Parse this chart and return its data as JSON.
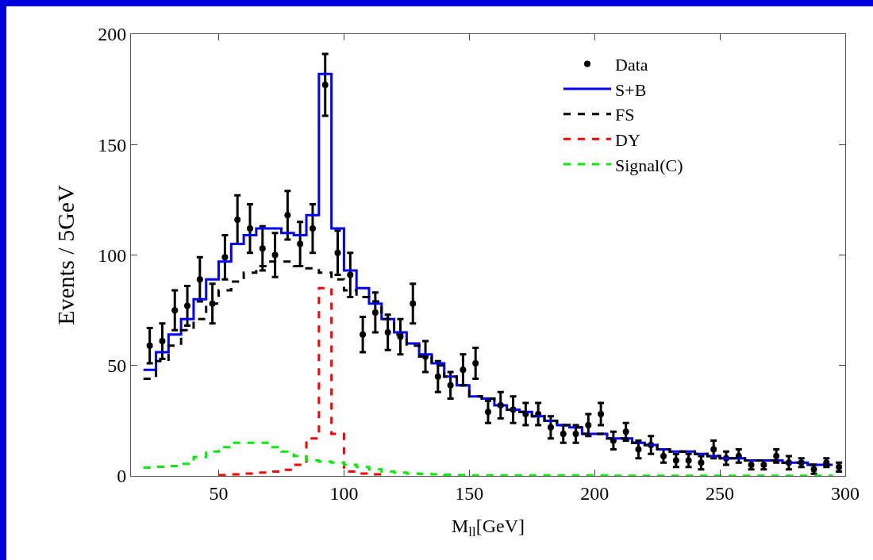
{
  "chart_data": {
    "type": "step",
    "xlabel": "M$_{ll}$[GeV]",
    "ylabel": "Events / 5GeV",
    "xlim": [
      15,
      300
    ],
    "xticks": [
      50,
      100,
      150,
      200,
      250,
      300
    ],
    "ylim": [
      0,
      200
    ],
    "yticks": [
      0,
      50,
      100,
      150,
      200
    ],
    "grid": false,
    "legend": "top right",
    "series": [
      {
        "name": "Data",
        "type": "scatter",
        "color": "#000000",
        "marker": "circle",
        "x": [
          22.5,
          27.5,
          32.5,
          37.5,
          42.5,
          47.5,
          52.5,
          57.5,
          62.5,
          67.5,
          72.5,
          77.5,
          82.5,
          87.5,
          92.5,
          97.5,
          102.5,
          107.5,
          112.5,
          117.5,
          122.5,
          127.5,
          132.5,
          137.5,
          142.5,
          147.5,
          152.5,
          157.5,
          162.5,
          167.5,
          172.5,
          177.5,
          182.5,
          187.5,
          192.5,
          197.5,
          202.5,
          207.5,
          212.5,
          217.5,
          222.5,
          227.5,
          232.5,
          237.5,
          242.5,
          247.5,
          252.5,
          257.5,
          262.5,
          267.5,
          272.5,
          277.5,
          282.5,
          287.5,
          292.5,
          297.5
        ],
        "values": [
          59,
          61,
          75,
          77,
          89,
          78,
          99,
          116,
          112,
          103,
          100,
          118,
          105,
          112,
          177,
          101,
          91,
          64,
          74,
          65,
          63,
          78,
          54,
          45,
          41,
          48,
          51,
          29,
          32,
          30,
          28,
          28,
          22,
          19,
          19,
          23,
          28,
          16,
          20,
          12,
          14,
          9,
          7,
          7,
          6,
          12,
          8,
          9,
          5,
          5,
          9,
          6,
          6,
          3,
          6,
          4
        ],
        "errors": [
          8,
          8,
          9,
          9,
          10,
          9,
          10,
          11,
          11,
          10,
          10,
          11,
          10,
          11,
          14,
          10,
          10,
          8,
          9,
          8,
          8,
          9,
          7,
          7,
          6,
          7,
          7,
          5,
          6,
          6,
          5,
          5,
          5,
          4,
          4,
          5,
          5,
          4,
          4,
          4,
          4,
          3,
          3,
          3,
          3,
          4,
          3,
          3,
          2,
          2,
          3,
          3,
          2,
          2,
          2,
          2
        ]
      },
      {
        "name": "S+B",
        "color": "#0000ff",
        "line_style": "solid",
        "x": [
          20,
          25,
          30,
          35,
          40,
          45,
          50,
          55,
          60,
          65,
          70,
          75,
          80,
          85,
          90,
          95,
          100,
          105,
          110,
          115,
          120,
          125,
          130,
          135,
          140,
          145,
          150,
          155,
          160,
          165,
          170,
          175,
          180,
          185,
          190,
          195,
          200,
          205,
          210,
          215,
          220,
          225,
          230,
          235,
          240,
          245,
          250,
          255,
          260,
          265,
          270,
          275,
          280,
          285,
          290,
          295
        ],
        "values": [
          48,
          56,
          64,
          71,
          80,
          89,
          97,
          105,
          109,
          112,
          112,
          110,
          109,
          118,
          182,
          112,
          93,
          85,
          78,
          71,
          65,
          60,
          55,
          51,
          45,
          41,
          36,
          35,
          32,
          30,
          29,
          27,
          25,
          23,
          22,
          19,
          19,
          17,
          17,
          15,
          14,
          12,
          11,
          11,
          10,
          9,
          8,
          8,
          7,
          7,
          7,
          6,
          6,
          5,
          5,
          5
        ]
      },
      {
        "name": "FS",
        "color": "#000000",
        "line_style": "dashed",
        "x": [
          20,
          25,
          30,
          35,
          40,
          45,
          50,
          55,
          60,
          65,
          70,
          75,
          80,
          85,
          90,
          95,
          100,
          105,
          110,
          115,
          120,
          125,
          130,
          135,
          140,
          145,
          150,
          155,
          160,
          165,
          170,
          175,
          180,
          185,
          190,
          195,
          200,
          205,
          210,
          215,
          220,
          225,
          230,
          235,
          240,
          245,
          250,
          255,
          260,
          265,
          270,
          275,
          280,
          285,
          290,
          295
        ],
        "values": [
          44,
          52,
          59,
          66,
          71,
          78,
          84,
          88,
          92,
          95,
          97,
          97,
          95,
          94,
          92,
          89,
          84,
          81,
          79,
          71,
          64,
          59,
          54,
          50,
          45,
          41,
          36,
          35,
          32,
          30,
          29,
          27,
          25,
          23,
          22,
          19,
          19,
          17,
          17,
          15,
          14,
          12,
          11,
          11,
          10,
          9,
          8,
          8,
          7,
          7,
          7,
          6,
          6,
          5,
          5,
          5
        ]
      },
      {
        "name": "DY",
        "color": "#ff0000",
        "line_style": "dashed",
        "x": [
          50,
          55,
          60,
          65,
          70,
          75,
          80,
          85,
          90,
          95,
          100,
          105,
          110,
          115
        ],
        "values": [
          0.4,
          0.7,
          1.1,
          1.5,
          2,
          2.8,
          5,
          17,
          85,
          19,
          2,
          1.1,
          0.7,
          0.1
        ]
      },
      {
        "name": "Signal(C)",
        "color": "#00ee00",
        "line_style": "dashed",
        "x": [
          20,
          25,
          30,
          35,
          40,
          45,
          50,
          55,
          60,
          65,
          70,
          75,
          80,
          85,
          90,
          95,
          100,
          105,
          110,
          115,
          120,
          125,
          130,
          135,
          140,
          145,
          150,
          155,
          160,
          165,
          170,
          175,
          180,
          185,
          190,
          195,
          200,
          205,
          210,
          215,
          220,
          225,
          230,
          235,
          240,
          245,
          250,
          255,
          260,
          265,
          270,
          275,
          280,
          285,
          290,
          295
        ],
        "values": [
          3.8,
          4.1,
          4.5,
          5.5,
          8.5,
          11,
          13,
          15,
          15,
          15,
          13,
          11,
          9,
          7,
          6.5,
          6,
          5,
          4,
          3,
          2,
          1.5,
          1.1,
          0.9,
          0.7,
          0.5,
          0.4,
          0.3,
          0.3,
          0.3,
          0.3,
          0.3,
          0.3,
          0.3,
          0.3,
          0.3,
          0.3,
          0.3,
          0.1,
          0.1,
          0.1,
          0.1,
          0.1,
          0.1,
          0.1,
          0.1,
          0.1,
          0.1,
          0.1,
          0.1,
          0.1,
          0.1,
          0.1,
          0.1,
          0.1,
          0.1,
          0.1
        ]
      }
    ]
  }
}
